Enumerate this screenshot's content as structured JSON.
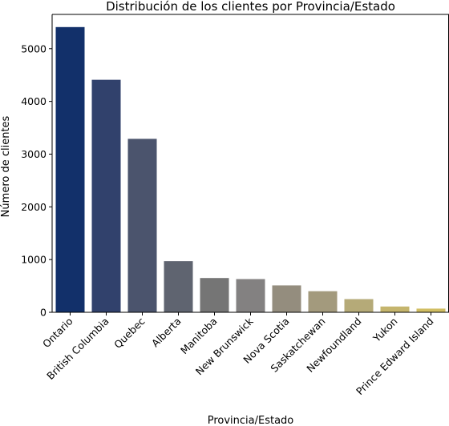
{
  "chart_data": {
    "type": "bar",
    "title": "Distribución de los clientes por Provincia/Estado",
    "xlabel": "Provincia/Estado",
    "ylabel": "Número de clientes",
    "categories": [
      "Ontario",
      "British Columbia",
      "Quebec",
      "Alberta",
      "Manitoba",
      "New Brunswick",
      "Nova Scotia",
      "Saskatchewan",
      "Newfoundland",
      "Yukon",
      "Prince Edward Island"
    ],
    "values": [
      5410,
      4410,
      3290,
      970,
      650,
      630,
      510,
      400,
      250,
      110,
      70
    ],
    "ylim": [
      0,
      5650
    ],
    "yticks": [
      0,
      1000,
      2000,
      3000,
      4000,
      5000
    ],
    "colors": [
      "#12306a",
      "#31416c",
      "#4b546d",
      "#5f6470",
      "#757575",
      "#838181",
      "#948d7e",
      "#a39a7d",
      "#b5aa78",
      "#c5b56d",
      "#d1be63"
    ],
    "grid": false,
    "legend": "none"
  }
}
